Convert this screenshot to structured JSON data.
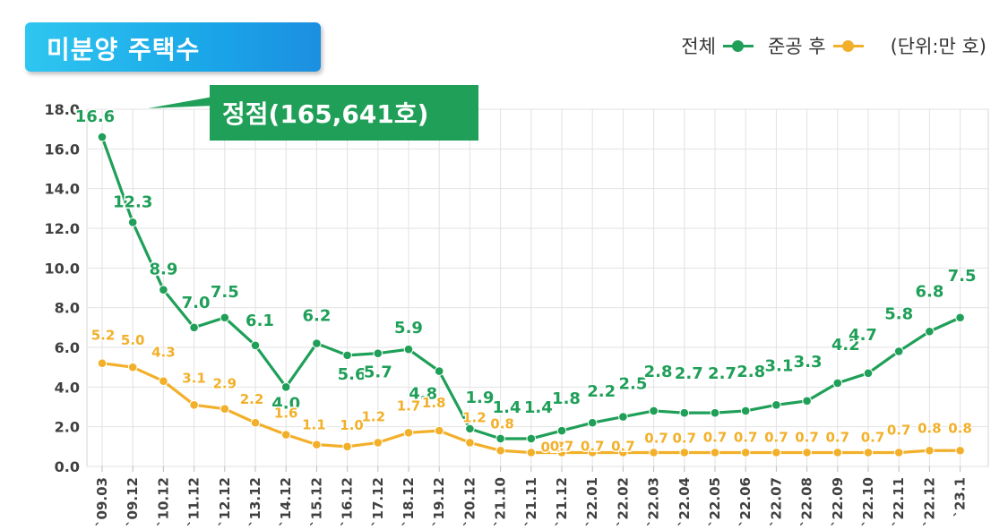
{
  "title": "미분양 주택수",
  "legend": {
    "total": "전체",
    "post_completion": "준공 후",
    "unit": "(단위:만 호)"
  },
  "peak_label": "정점(165,641호)",
  "colors": {
    "total": "#1f9f58",
    "post_completion": "#f2b02a",
    "title_bg": "#1aa7e8"
  },
  "chart_data": {
    "type": "line",
    "categories": [
      "`09.03",
      "`09.12",
      "`10.12",
      "`11.12",
      "`12.12",
      "`13.12",
      "`14.12",
      "`15.12",
      "`16.12",
      "`17.12",
      "`18.12",
      "`19.12",
      "`20.12",
      "`21.10",
      "`21.11",
      "`21.12",
      "`22.01",
      "`22.02",
      "`22.03",
      "`22.04",
      "`22.05",
      "`22.06",
      "`22.07",
      "`22.08",
      "`22.09",
      "`22.10",
      "`22.11",
      "`22.12",
      "`23.1"
    ],
    "series": [
      {
        "name": "전체",
        "values": [
          16.6,
          12.3,
          8.9,
          7.0,
          7.5,
          6.1,
          4.0,
          6.2,
          5.6,
          5.7,
          5.9,
          4.8,
          1.9,
          1.4,
          1.4,
          1.8,
          2.2,
          2.5,
          2.8,
          2.7,
          2.7,
          2.8,
          3.1,
          3.3,
          4.2,
          4.7,
          5.8,
          6.8,
          7.5
        ]
      },
      {
        "name": "준공 후",
        "values": [
          5.2,
          5.0,
          4.3,
          3.1,
          2.9,
          2.2,
          1.6,
          1.1,
          1.0,
          1.2,
          1.7,
          1.8,
          1.2,
          0.8,
          0.7,
          0.7,
          0.7,
          0.7,
          0.7,
          0.7,
          0.7,
          0.7,
          0.7,
          0.7,
          0.7,
          0.7,
          0.7,
          0.8,
          0.8
        ]
      }
    ],
    "yticks": [
      "0.0",
      "2.0",
      "4.0",
      "6.0",
      "8.0",
      "10.0",
      "12.0",
      "14.0",
      "16.0",
      "18.0"
    ],
    "ylim": [
      0,
      18
    ],
    "grid": true
  }
}
